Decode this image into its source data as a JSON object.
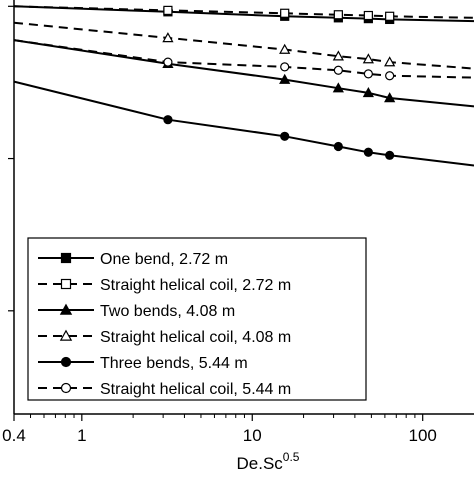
{
  "chart_data": {
    "type": "line",
    "xscale": "log",
    "yscale": "log",
    "xlim": [
      0.4,
      200
    ],
    "ylim": [
      0.0021,
      1.1
    ],
    "xlabel": "De.Sc",
    "xlabel_sup": "0.5",
    "ylabel": "",
    "x_ticks": [
      {
        "value": 0.4,
        "label": "0.4"
      },
      {
        "value": 1,
        "label": "1"
      },
      {
        "value": 10,
        "label": "10"
      },
      {
        "value": 100,
        "label": "100"
      }
    ],
    "grid": false,
    "legend_position": "lower-left",
    "series": [
      {
        "name": "One bend, 2.72 m",
        "marker": "square-filled",
        "line": "solid",
        "x": [
          0.4,
          3.2,
          15.5,
          32,
          48,
          64,
          200
        ],
        "y": [
          1.0,
          0.92,
          0.86,
          0.84,
          0.83,
          0.82,
          0.8
        ]
      },
      {
        "name": "Straight helical coil, 2.72 m",
        "marker": "square-open",
        "line": "dashed",
        "x": [
          0.4,
          3.2,
          15.5,
          32,
          48,
          64,
          200
        ],
        "y": [
          1.0,
          0.94,
          0.9,
          0.88,
          0.87,
          0.86,
          0.84
        ]
      },
      {
        "name": "Two bends, 4.08 m",
        "marker": "triangle-filled",
        "line": "solid",
        "x": [
          0.4,
          3.2,
          15.5,
          32,
          48,
          64,
          200
        ],
        "y": [
          0.6,
          0.42,
          0.33,
          0.29,
          0.27,
          0.25,
          0.22
        ]
      },
      {
        "name": "Straight helical coil, 4.08 m",
        "marker": "triangle-open",
        "line": "dashed",
        "x": [
          0.4,
          3.2,
          15.5,
          32,
          48,
          64,
          200
        ],
        "y": [
          0.78,
          0.62,
          0.52,
          0.47,
          0.45,
          0.43,
          0.39
        ]
      },
      {
        "name": "Three bends, 5.44 m",
        "marker": "circle-filled",
        "line": "solid",
        "x": [
          0.4,
          3.2,
          15.5,
          32,
          48,
          64,
          200
        ],
        "y": [
          0.32,
          0.18,
          0.14,
          0.12,
          0.11,
          0.105,
          0.09
        ]
      },
      {
        "name": "Straight helical coil, 5.44 m",
        "marker": "circle-open",
        "line": "dashed",
        "x": [
          0.4,
          3.2,
          15.5,
          32,
          48,
          64,
          200
        ],
        "y": [
          0.6,
          0.43,
          0.4,
          0.38,
          0.36,
          0.35,
          0.34
        ]
      }
    ]
  }
}
